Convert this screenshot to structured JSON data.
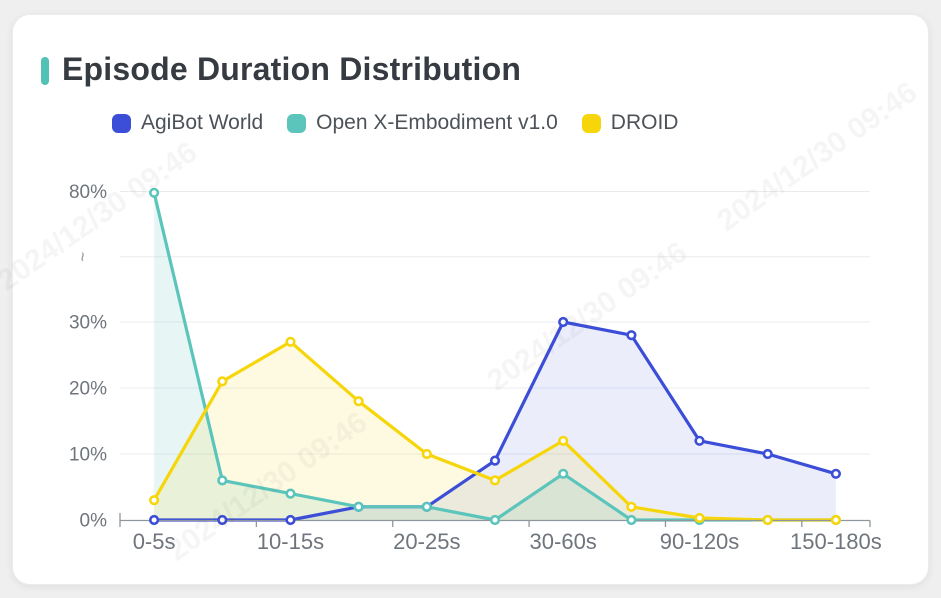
{
  "page": {
    "background": "#efefef",
    "card_background": "#ffffff"
  },
  "header": {
    "title": "Episode Duration Distribution",
    "accent_color": "#52c1b6"
  },
  "legend": [
    {
      "label": "AgiBot World",
      "color": "#3c4ed8"
    },
    {
      "label": "Open X-Embodiment v1.0",
      "color": "#5cc5bb"
    },
    {
      "label": "DROID",
      "color": "#f6d60a"
    }
  ],
  "watermark": {
    "text": "2024/12/30 09:46"
  },
  "chart_data": {
    "type": "line",
    "title": "Episode Duration Distribution",
    "categories": [
      "0-5s",
      "",
      "10-15s",
      "",
      "20-25s",
      "",
      "30-60s",
      "",
      "90-120s",
      "",
      "150-180s"
    ],
    "x_tick_labels_shown": [
      "0-5s",
      "10-15s",
      "20-25s",
      "30-60s",
      "90-120s",
      "150-180s"
    ],
    "series": [
      {
        "name": "AgiBot World",
        "color": "#3c4ed8",
        "values": [
          0,
          0,
          0,
          2,
          2,
          9,
          30,
          28,
          12,
          10,
          7
        ]
      },
      {
        "name": "Open X-Embodiment v1.0",
        "color": "#5cc5bb",
        "values": [
          79.5,
          6,
          4,
          2,
          2,
          0,
          7,
          0,
          0,
          0,
          0
        ]
      },
      {
        "name": "DROID",
        "color": "#f6d60a",
        "values": [
          3,
          21,
          27,
          18,
          10,
          6,
          12,
          2,
          0.3,
          0,
          0
        ]
      }
    ],
    "area_opacity": [
      0.1,
      0.15,
      0.12
    ],
    "y_axis": {
      "tick_labels": [
        "0%",
        "10%",
        "20%",
        "30%",
        "~",
        "80%"
      ],
      "unit": "%",
      "axis_break_between": [
        30,
        80
      ]
    },
    "ylim_segments": [
      [
        0,
        30
      ],
      [
        30,
        80
      ]
    ],
    "grid": true,
    "legend_position": "top",
    "marker": "empty-circle"
  }
}
